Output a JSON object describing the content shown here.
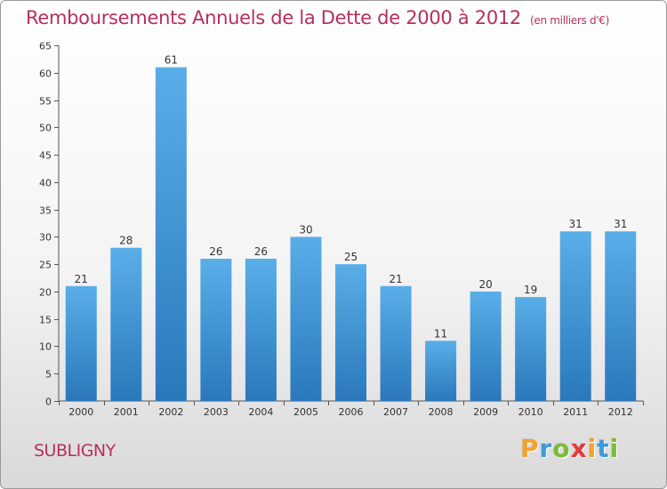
{
  "title": "Remboursements Annuels de la Dette de 2000 à 2012",
  "unit": "(en milliers d'€)",
  "place": "SUBLIGNY",
  "logo": {
    "letters": [
      "P",
      "r",
      "o",
      "x",
      "i",
      "t",
      "i"
    ],
    "colors": [
      "#f3a02d",
      "#3f9bd8",
      "#7dbb3a",
      "#e6393a",
      "#f3a02d",
      "#3f9bd8",
      "#7dbb3a"
    ]
  },
  "colors": {
    "title": "#b5305c",
    "bar_light": "#5aaee8",
    "bar_dark": "#2a78bb"
  },
  "chart_data": {
    "type": "bar",
    "title": "Remboursements Annuels de la Dette de 2000 à 2012",
    "unit_label": "(en milliers d'€)",
    "categories": [
      "2000",
      "2001",
      "2002",
      "2003",
      "2004",
      "2005",
      "2006",
      "2007",
      "2008",
      "2009",
      "2010",
      "2011",
      "2012"
    ],
    "values": [
      21,
      28,
      61,
      26,
      26,
      30,
      25,
      21,
      11,
      20,
      19,
      31,
      31
    ],
    "ylim": [
      0,
      65
    ],
    "yticks": [
      0,
      5,
      10,
      15,
      20,
      25,
      30,
      35,
      40,
      45,
      50,
      55,
      60,
      65
    ],
    "grid": false,
    "legend": "none"
  }
}
